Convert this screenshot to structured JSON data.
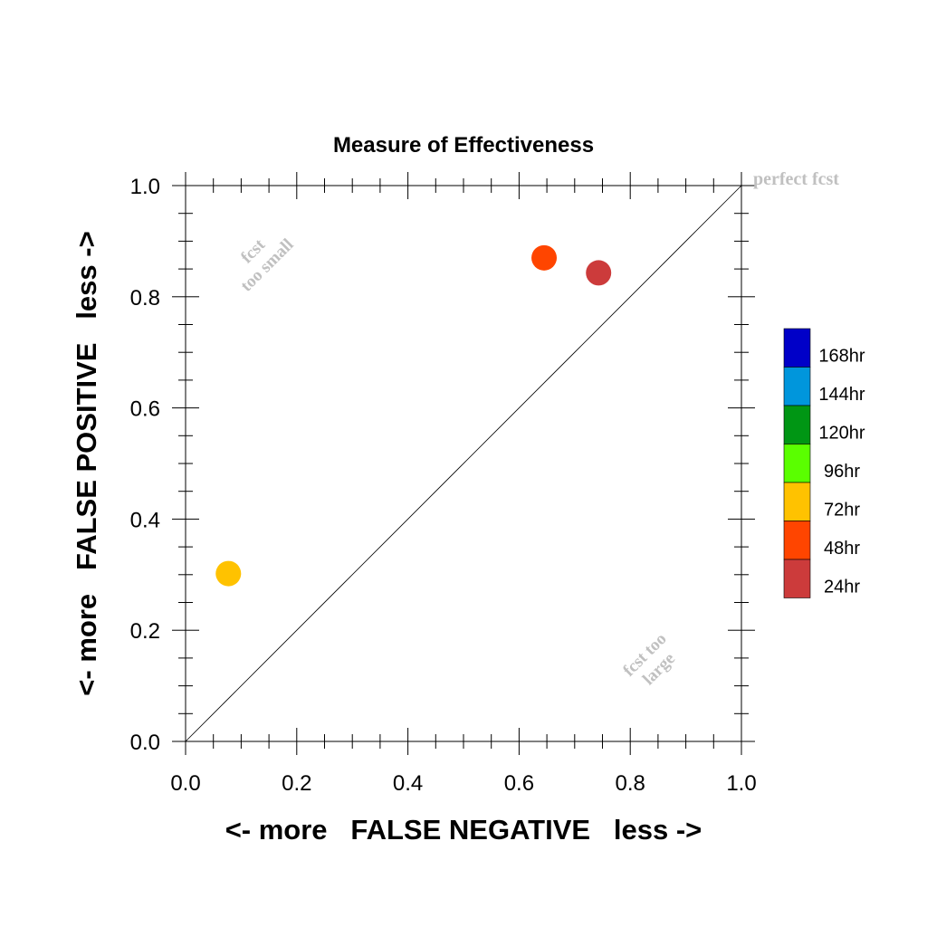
{
  "chart_data": {
    "type": "scatter",
    "title": "Measure of Effectiveness",
    "xlabel": "<- more   FALSE NEGATIVE   less ->",
    "ylabel": "<- more   FALSE POSITIVE   less ->",
    "xlim": [
      0.0,
      1.0
    ],
    "ylim": [
      0.0,
      1.0
    ],
    "x_ticks": [
      "0.0",
      "0.2",
      "0.4",
      "0.6",
      "0.8",
      "1.0"
    ],
    "y_ticks": [
      "0.0",
      "0.2",
      "0.4",
      "0.6",
      "0.8",
      "1.0"
    ],
    "grid": false,
    "diagonal": [
      [
        0.0,
        0.0
      ],
      [
        1.0,
        1.0
      ]
    ],
    "annotations": {
      "perfect": "perfect fcst",
      "too_small_line1": "fcst",
      "too_small_line2": "too small",
      "too_large_line1": "fcst too",
      "too_large_line2": "large"
    },
    "series": [
      {
        "name": "24hr",
        "color": "#cc3b3b",
        "x": 0.743,
        "y": 0.843
      },
      {
        "name": "48hr",
        "color": "#ff4500",
        "x": 0.645,
        "y": 0.87
      },
      {
        "name": "72hr",
        "color": "#ffc200",
        "x": 0.077,
        "y": 0.302
      }
    ],
    "legend": {
      "placement": "right",
      "entries": [
        {
          "label": "168hr",
          "color": "#0000c8"
        },
        {
          "label": "144hr",
          "color": "#0096dc"
        },
        {
          "label": "120hr",
          "color": "#009614"
        },
        {
          "label": "96hr",
          "color": "#5aff00"
        },
        {
          "label": "72hr",
          "color": "#ffc200"
        },
        {
          "label": "48hr",
          "color": "#ff4500"
        },
        {
          "label": "24hr",
          "color": "#cc3b3b"
        }
      ]
    }
  }
}
